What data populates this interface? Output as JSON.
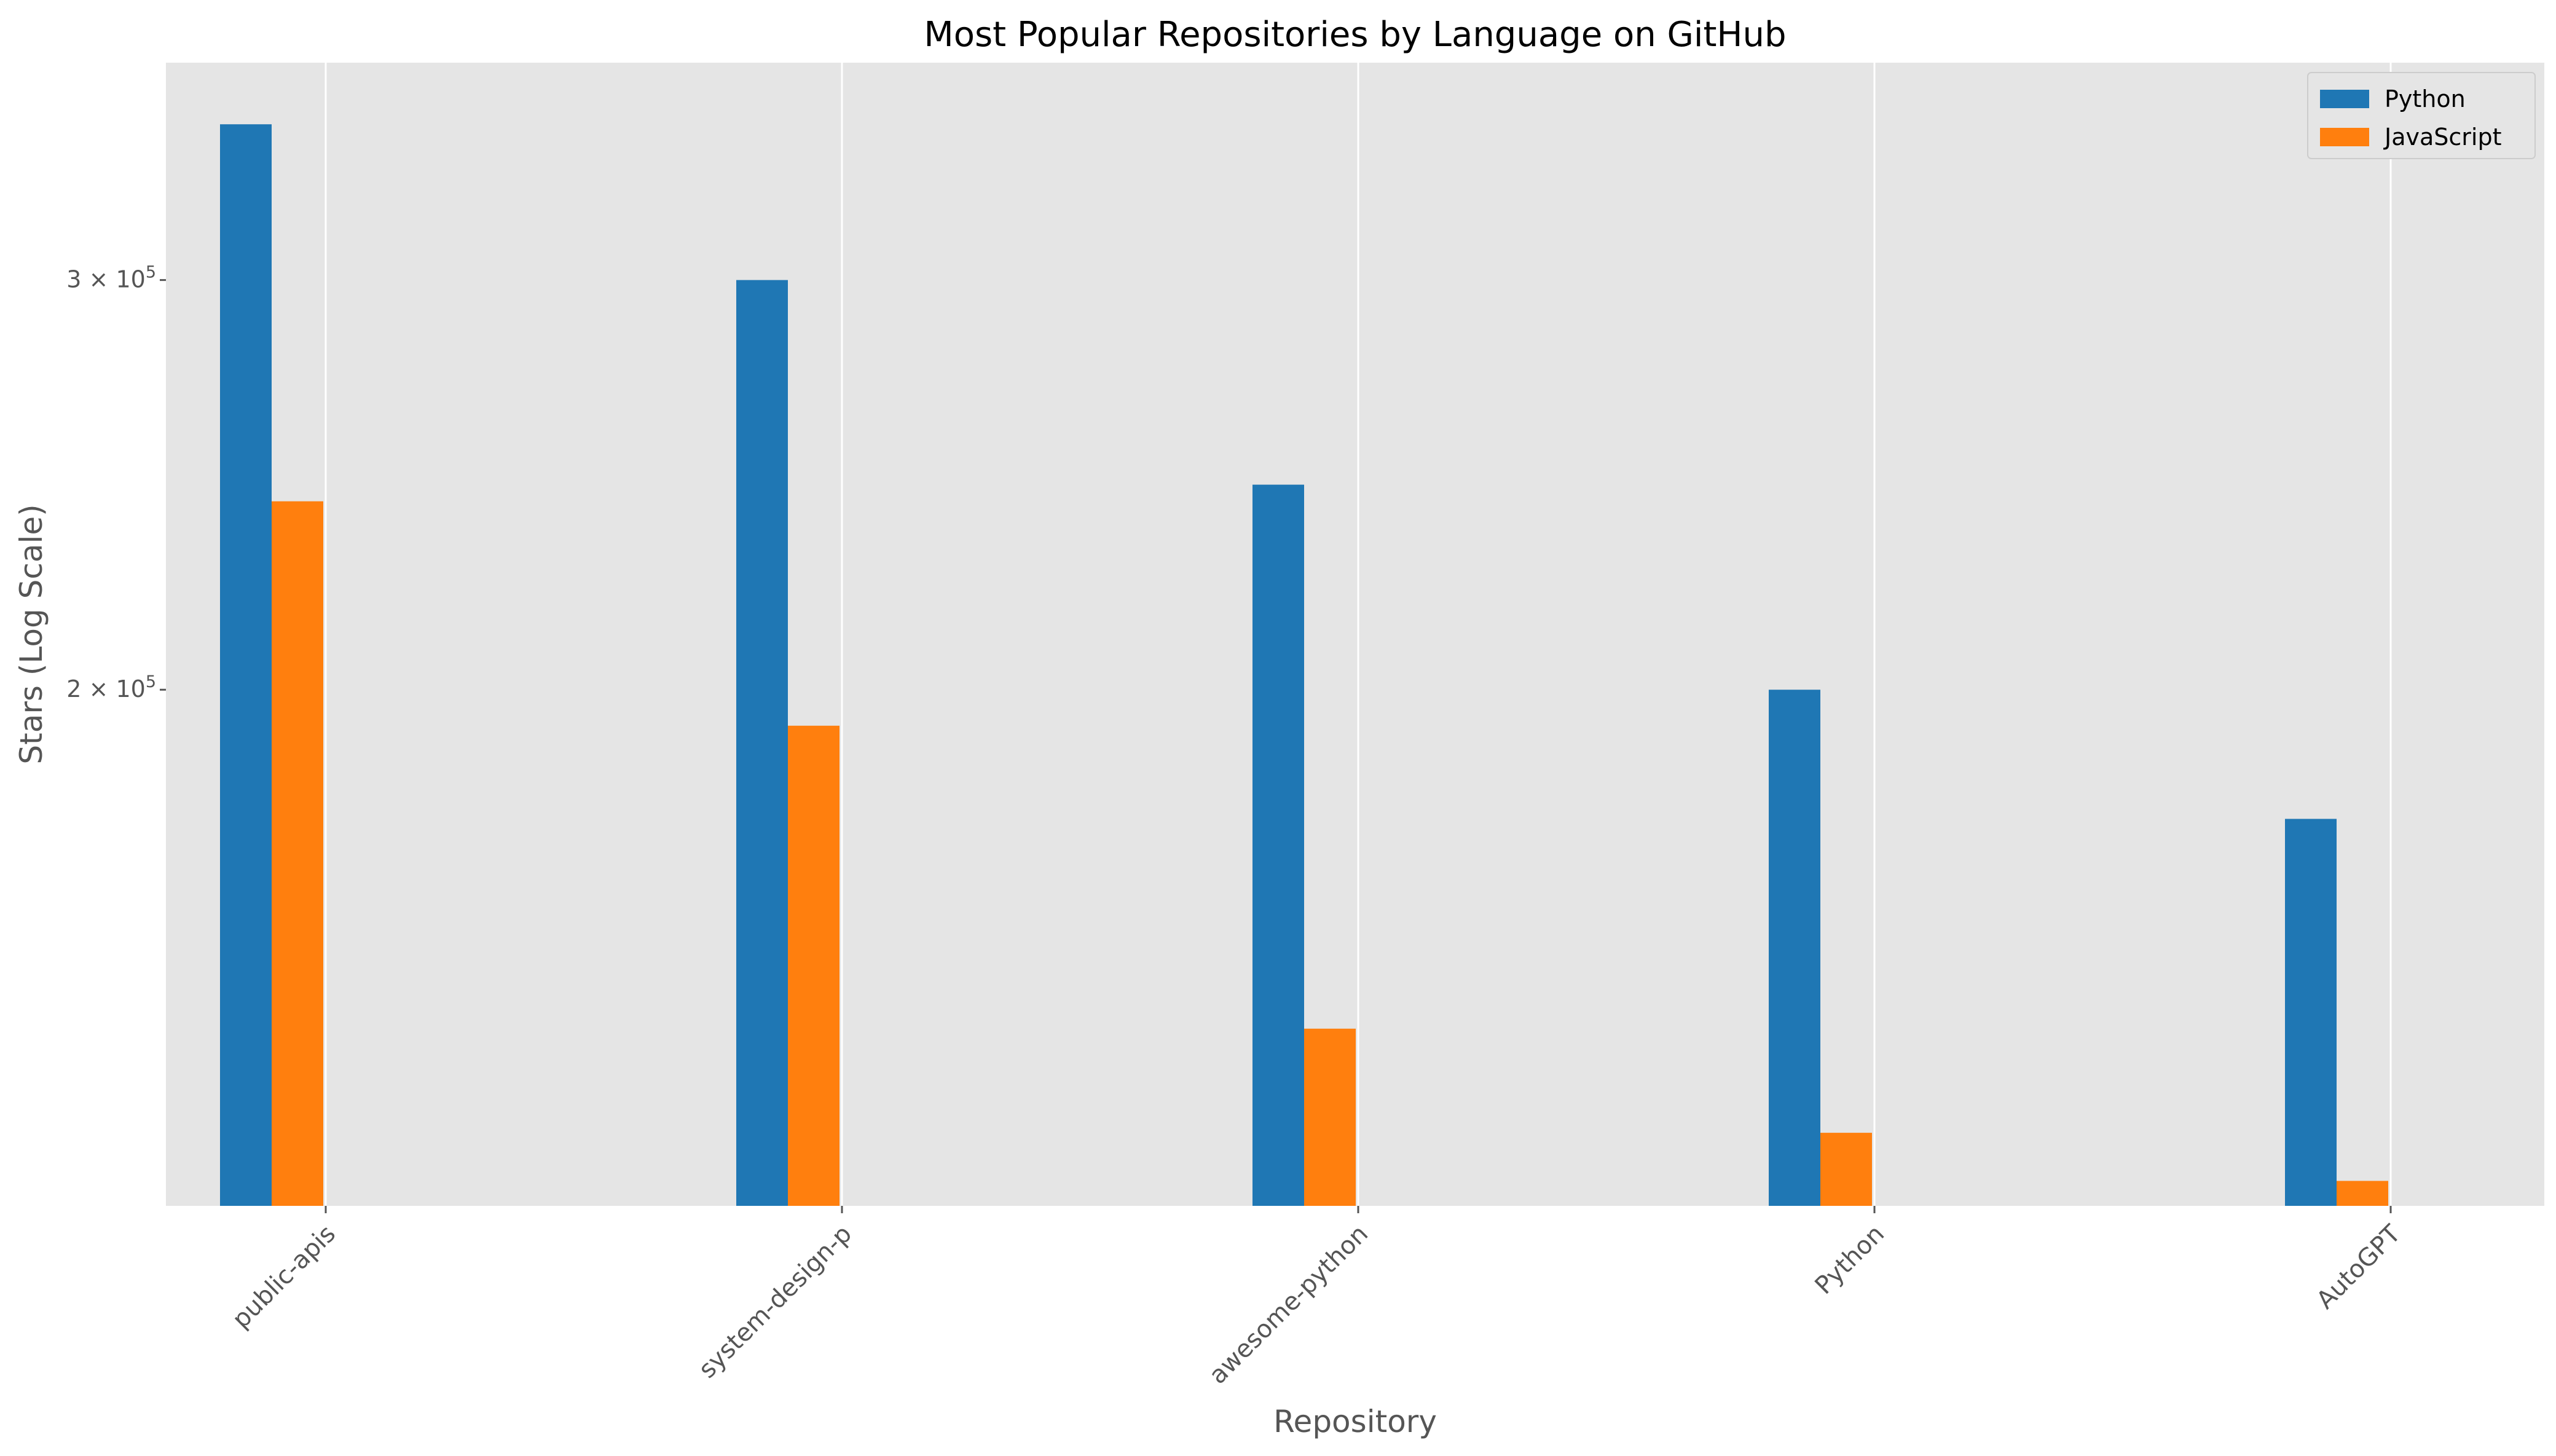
{
  "chart_data": {
    "type": "bar",
    "title": "Most Popular Repositories by Language on GitHub",
    "xlabel": "Repository",
    "ylabel": "Stars (Log Scale)",
    "y_scale": "log",
    "ylim": [
      120000,
      372000
    ],
    "yticks": [
      {
        "value": 200000,
        "label_base": "2 × 10",
        "label_exp": "5"
      },
      {
        "value": 300000,
        "label_base": "3 × 10",
        "label_exp": "5"
      }
    ],
    "categories": [
      "public-apis",
      "system-design-p",
      "awesome-python",
      "Python",
      "AutoGPT"
    ],
    "series": [
      {
        "name": "Python",
        "color": "#1f77b4",
        "values": [
          350000,
          300000,
          245000,
          200000,
          176000
        ]
      },
      {
        "name": "JavaScript",
        "color": "#ff7f0e",
        "values": [
          241000,
          193000,
          143000,
          129000,
          123000
        ]
      }
    ],
    "grid": true,
    "legend": "top-right",
    "background": "#e5e5e5"
  }
}
